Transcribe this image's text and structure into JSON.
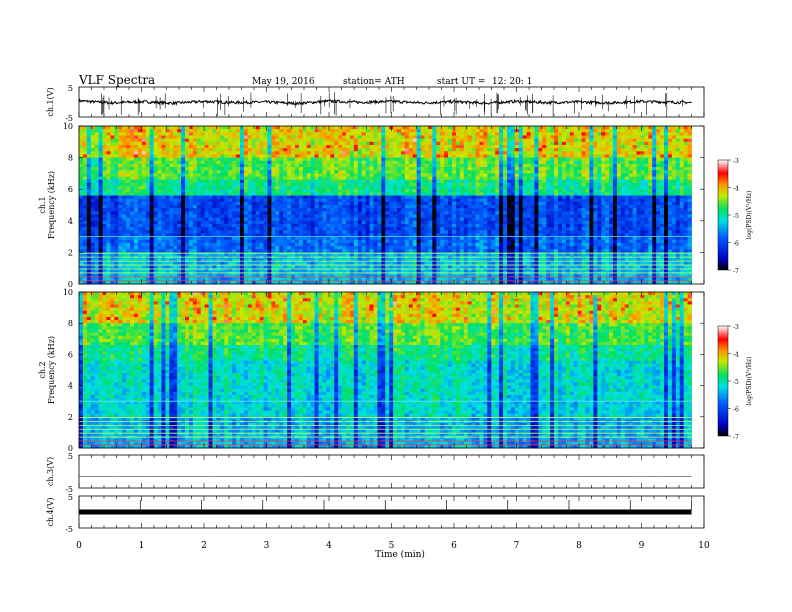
{
  "header": {
    "title": "VLF  Spectra",
    "date": "May 19, 2016",
    "station": "station= ATH",
    "start_label": "start  UT  =",
    "start_time": "12: 20: 1"
  },
  "chart_data": [
    {
      "type": "line",
      "panel": "ch1-waveform",
      "ylabel": "ch.1(V)",
      "ylim": [
        -5,
        5
      ],
      "ytick_labels": [
        "5",
        "-5"
      ],
      "x": [
        0,
        0.5,
        1,
        1.5,
        2,
        2.5,
        3,
        3.5,
        4,
        4.5,
        5,
        5.5,
        6,
        6.5,
        7,
        7.5,
        8,
        8.5,
        9,
        9.5,
        9.8
      ],
      "values": [
        0.4,
        -0.3,
        0.1,
        -0.4,
        0.2,
        -0.2,
        0.0,
        -0.5,
        0.3,
        -0.1,
        0.2,
        -0.3,
        0.1,
        -0.4,
        0.2,
        -0.2,
        0.0,
        -0.3,
        0.2,
        -0.1,
        -0.2
      ]
    },
    {
      "type": "heatmap",
      "panel": "ch1-spectrogram",
      "ylabel_channel": "ch.1",
      "ylabel": "Frequency  (kHz)",
      "ylim": [
        0,
        10
      ],
      "yticks": [
        0,
        2,
        4,
        6,
        8,
        10
      ],
      "colorbar": {
        "label": "log(PSD)(V²/Hz)",
        "range": [
          -7,
          -3
        ],
        "ticks": [
          "-3",
          "-4",
          "-5",
          "-6",
          "-7"
        ]
      }
    },
    {
      "type": "heatmap",
      "panel": "ch2-spectrogram",
      "ylabel_channel": "ch.2",
      "ylabel": "Frequency  (kHz)",
      "ylim": [
        0,
        10
      ],
      "yticks": [
        0,
        2,
        4,
        6,
        8,
        10
      ],
      "colorbar": {
        "label": "log(PSD)(V²/Hz)",
        "range": [
          -7,
          -3
        ],
        "ticks": [
          "-3",
          "-4",
          "-5",
          "-6",
          "-7"
        ]
      }
    },
    {
      "type": "line",
      "panel": "ch3-waveform",
      "ylabel": "ch.3(V)",
      "ylim": [
        -5,
        5
      ],
      "ytick_labels": [
        "5",
        "-5"
      ],
      "x": [
        0,
        9.8
      ],
      "values": [
        -1.5,
        -1.5
      ]
    },
    {
      "type": "line",
      "panel": "ch4-waveform",
      "ylabel": "ch.4(V)",
      "ylim": [
        -5,
        5
      ],
      "ytick_labels": [
        "5",
        "-5"
      ],
      "x": [
        0,
        9.8
      ],
      "values": [
        0,
        0
      ]
    }
  ],
  "xaxis": {
    "label": "Time  (min)",
    "range": [
      0,
      10
    ],
    "tick_labels": [
      "0",
      "1",
      "2",
      "3",
      "4",
      "5",
      "6",
      "7",
      "8",
      "9",
      "10"
    ]
  }
}
